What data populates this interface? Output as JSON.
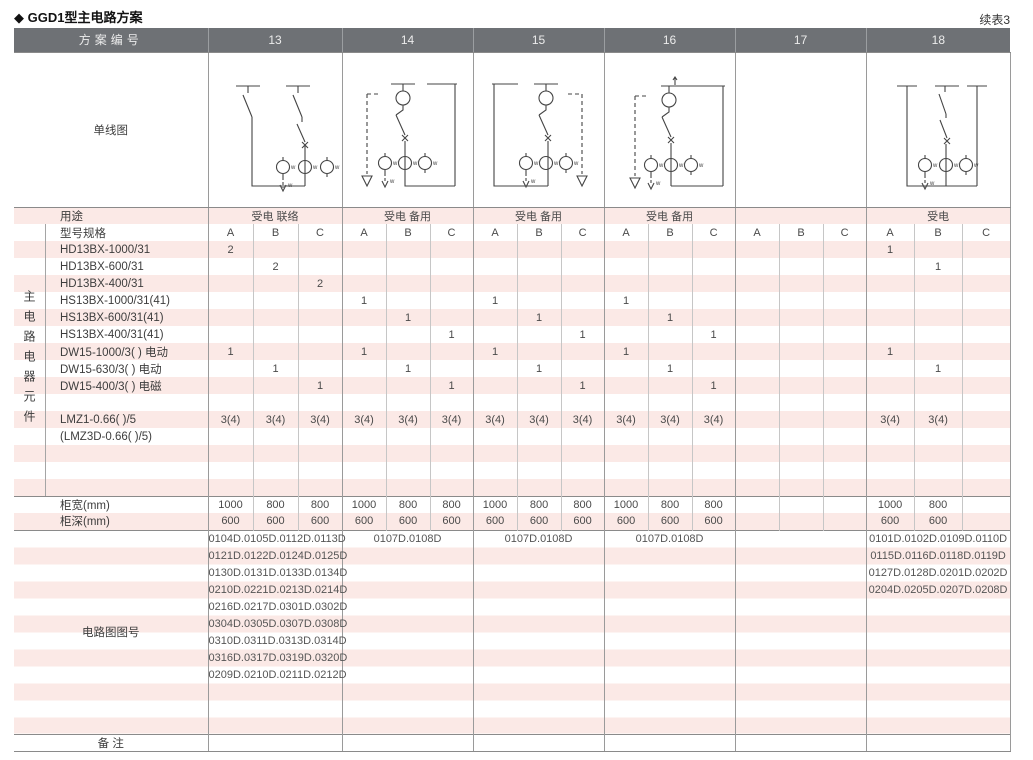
{
  "page": {
    "title": "◆ GGD1型主电路方案",
    "continued_note": "续表3"
  },
  "colors": {
    "header_bg": "#6e7175",
    "stripe_pink": "#fbe9e6",
    "grid_line": "#9a9a9a",
    "text": "#4a4a4a"
  },
  "table": {
    "header": {
      "label": "方案编号",
      "schemes": [
        "13",
        "14",
        "15",
        "16",
        "17",
        "18"
      ]
    },
    "row_labels": {
      "diagram": "单线图",
      "purpose": "用途",
      "model": "型号规格",
      "width": "柜宽(mm)",
      "depth": "柜深(mm)",
      "drawing_no": "电路图图号",
      "remark": "备 注"
    },
    "side_label": "主电路电器元件",
    "phase_headers": [
      "A",
      "B",
      "C"
    ],
    "purpose_values": [
      "受电 联络",
      "受电 备用",
      "受电 备用",
      "受电 备用",
      "",
      "受电"
    ],
    "component_rows": [
      {
        "label": "HD13BX-1000/31",
        "values": [
          "2",
          "",
          "",
          "",
          "",
          "",
          "",
          "",
          "",
          "",
          "",
          "",
          "",
          "",
          "",
          "1",
          "",
          ""
        ]
      },
      {
        "label": "HD13BX-600/31",
        "values": [
          "",
          "2",
          "",
          "",
          "",
          "",
          "",
          "",
          "",
          "",
          "",
          "",
          "",
          "",
          "",
          "",
          "1",
          ""
        ]
      },
      {
        "label": "HD13BX-400/31",
        "values": [
          "",
          "",
          "2",
          "",
          "",
          "",
          "",
          "",
          "",
          "",
          "",
          "",
          "",
          "",
          "",
          "",
          "",
          ""
        ]
      },
      {
        "label": "HS13BX-1000/31(41)",
        "values": [
          "",
          "",
          "",
          "1",
          "",
          "",
          "1",
          "",
          "",
          "1",
          "",
          "",
          "",
          "",
          "",
          "",
          "",
          ""
        ]
      },
      {
        "label": "HS13BX-600/31(41)",
        "values": [
          "",
          "",
          "",
          "",
          "1",
          "",
          "",
          "1",
          "",
          "",
          "1",
          "",
          "",
          "",
          "",
          "",
          "",
          ""
        ]
      },
      {
        "label": "HS13BX-400/31(41)",
        "values": [
          "",
          "",
          "",
          "",
          "",
          "1",
          "",
          "",
          "1",
          "",
          "",
          "1",
          "",
          "",
          "",
          "",
          "",
          ""
        ]
      },
      {
        "label": "DW15-1000/3( )  电动",
        "values": [
          "1",
          "",
          "",
          "1",
          "",
          "",
          "1",
          "",
          "",
          "1",
          "",
          "",
          "",
          "",
          "",
          "1",
          "",
          ""
        ]
      },
      {
        "label": "DW15-630/3( )  电动",
        "values": [
          "",
          "1",
          "",
          "",
          "1",
          "",
          "",
          "1",
          "",
          "",
          "1",
          "",
          "",
          "",
          "",
          "",
          "1",
          ""
        ]
      },
      {
        "label": "DW15-400/3( )  电磁",
        "values": [
          "",
          "",
          "1",
          "",
          "",
          "1",
          "",
          "",
          "1",
          "",
          "",
          "1",
          "",
          "",
          "",
          "",
          "",
          ""
        ]
      },
      {
        "label": "",
        "values": []
      },
      {
        "label": "LMZ1-0.66( )/5",
        "values": [
          "3(4)",
          "3(4)",
          "3(4)",
          "3(4)",
          "3(4)",
          "3(4)",
          "3(4)",
          "3(4)",
          "3(4)",
          "3(4)",
          "3(4)",
          "3(4)",
          "",
          "",
          "",
          "3(4)",
          "3(4)",
          ""
        ]
      },
      {
        "label": "(LMZ3D-0.66( )/5)",
        "values": []
      },
      {
        "label": "",
        "values": []
      },
      {
        "label": "",
        "values": []
      },
      {
        "label": "",
        "values": []
      }
    ],
    "width_values": [
      "1000",
      "800",
      "800",
      "1000",
      "800",
      "800",
      "1000",
      "800",
      "800",
      "1000",
      "800",
      "800",
      "",
      "",
      "",
      "1000",
      "800",
      ""
    ],
    "depth_values": [
      "600",
      "600",
      "600",
      "600",
      "600",
      "600",
      "600",
      "600",
      "600",
      "600",
      "600",
      "600",
      "",
      "",
      "",
      "600",
      "600",
      ""
    ],
    "drawing_numbers": [
      [
        "0104D.0105D.0112D.0113D",
        "0121D.0122D.0124D.0125D",
        "0130D.0131D.0133D.0134D",
        "0210D.0221D.0213D.0214D",
        "0216D.0217D.0301D.0302D",
        "0304D.0305D.0307D.0308D",
        "0310D.0311D.0313D.0314D",
        "0316D.0317D.0319D.0320D",
        "0209D.0210D.0211D.0212D"
      ],
      [
        "0107D.0108D"
      ],
      [
        "0107D.0108D"
      ],
      [
        "0107D.0108D"
      ],
      [],
      [
        "0101D.0102D.0109D.0110D",
        "0115D.0116D.0118D.0119D",
        "0127D.0128D.0201D.0202D",
        "0204D.0205D.0207D.0208D"
      ]
    ]
  }
}
